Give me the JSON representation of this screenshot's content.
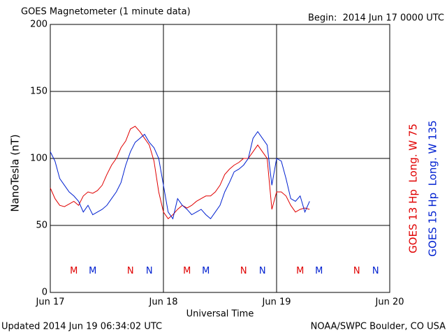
{
  "chart_data": {
    "type": "line",
    "title": "GOES Magnetometer (1 minute data)",
    "subtitle": "Begin:  2014 Jun 17 0000 UTC",
    "y_label": "NanoTesla (nT)",
    "x_label": "Universal Time",
    "footer_left": "Updated 2014 Jun 19 06:34:02 UTC",
    "footer_right": "NOAA/SWPC Boulder, CO USA",
    "x": [
      0,
      1,
      2,
      3,
      4,
      5,
      6,
      7,
      8,
      9,
      10,
      11,
      12,
      13,
      14,
      15,
      16,
      17,
      18,
      19,
      20,
      21,
      22,
      23,
      24,
      25,
      26,
      27,
      28,
      29,
      30,
      31,
      32,
      33,
      34,
      35,
      36,
      37,
      38,
      39,
      40,
      41,
      42,
      43,
      44,
      45,
      46,
      47,
      48,
      49,
      50,
      51,
      52,
      53,
      54,
      55
    ],
    "series": [
      {
        "name": "GOES 13 Hp  Long. W 75",
        "color": "#e00000",
        "values": [
          78,
          70,
          65,
          64,
          66,
          68,
          65,
          72,
          75,
          74,
          76,
          80,
          88,
          95,
          100,
          108,
          113,
          122,
          124,
          120,
          115,
          110,
          98,
          75,
          60,
          55,
          58,
          62,
          65,
          63,
          65,
          68,
          70,
          72,
          72,
          75,
          80,
          88,
          92,
          95,
          97,
          100,
          100,
          105,
          110,
          105,
          100,
          62,
          75,
          75,
          72,
          65,
          60,
          62,
          63,
          62
        ]
      },
      {
        "name": "GOES 15 Hp  Long. W 135",
        "color": "#0020d0",
        "values": [
          105,
          98,
          85,
          80,
          75,
          72,
          68,
          60,
          65,
          58,
          60,
          62,
          65,
          70,
          75,
          82,
          95,
          105,
          112,
          115,
          118,
          112,
          108,
          100,
          80,
          60,
          55,
          70,
          65,
          62,
          58,
          60,
          62,
          58,
          55,
          60,
          65,
          75,
          82,
          90,
          92,
          95,
          100,
          115,
          120,
          115,
          110,
          80,
          100,
          98,
          85,
          70,
          68,
          72,
          60,
          68
        ]
      }
    ],
    "annotations": [
      {
        "text": "M",
        "x": 5,
        "y": 16,
        "color": "#e00000"
      },
      {
        "text": "M",
        "x": 9,
        "y": 16,
        "color": "#0020d0"
      },
      {
        "text": "N",
        "x": 17,
        "y": 16,
        "color": "#e00000"
      },
      {
        "text": "N",
        "x": 21,
        "y": 16,
        "color": "#0020d0"
      },
      {
        "text": "M",
        "x": 29,
        "y": 16,
        "color": "#e00000"
      },
      {
        "text": "M",
        "x": 33,
        "y": 16,
        "color": "#0020d0"
      },
      {
        "text": "N",
        "x": 41,
        "y": 16,
        "color": "#e00000"
      },
      {
        "text": "N",
        "x": 45,
        "y": 16,
        "color": "#0020d0"
      },
      {
        "text": "M",
        "x": 53,
        "y": 16,
        "color": "#e00000"
      },
      {
        "text": "M",
        "x": 57,
        "y": 16,
        "color": "#0020d0"
      },
      {
        "text": "N",
        "x": 65,
        "y": 16,
        "color": "#e00000"
      },
      {
        "text": "N",
        "x": 69,
        "y": 16,
        "color": "#0020d0"
      }
    ],
    "xlim": [
      0,
      72
    ],
    "xticks": [
      {
        "value": 0,
        "label": "Jun 17"
      },
      {
        "value": 24,
        "label": "Jun 18"
      },
      {
        "value": 48,
        "label": "Jun 19"
      },
      {
        "value": 72,
        "label": "Jun 20"
      }
    ],
    "ylim": [
      0,
      200
    ],
    "yticks": [
      0,
      50,
      100,
      150,
      200
    ],
    "grid": true
  }
}
